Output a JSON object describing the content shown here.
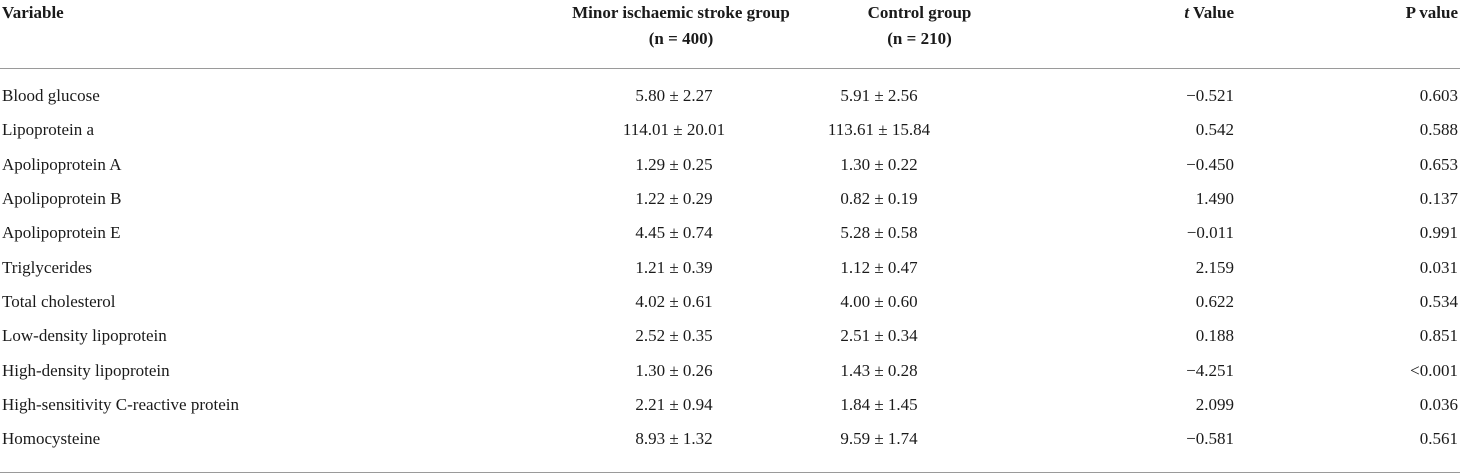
{
  "table": {
    "headers": {
      "variable": "Variable",
      "minor_line1": "Minor ischaemic stroke group",
      "minor_line2": "(n = 400)",
      "control_line1": "Control group",
      "control_line2": "(n = 210)",
      "t_italic": "t",
      "t_rest": " Value",
      "p_value": "P value"
    },
    "rows": [
      {
        "variable": "Blood glucose",
        "minor": "5.80 ± 2.27",
        "control": "5.91 ± 2.56",
        "t": "−0.521",
        "p": "0.603"
      },
      {
        "variable": "Lipoprotein a",
        "minor": "114.01 ± 20.01",
        "control": "113.61 ± 15.84",
        "t": "0.542",
        "p": "0.588"
      },
      {
        "variable": "Apolipoprotein A",
        "minor": "1.29 ± 0.25",
        "control": "1.30 ± 0.22",
        "t": "−0.450",
        "p": "0.653"
      },
      {
        "variable": "Apolipoprotein B",
        "minor": "1.22 ± 0.29",
        "control": "0.82 ± 0.19",
        "t": "1.490",
        "p": "0.137"
      },
      {
        "variable": "Apolipoprotein E",
        "minor": "4.45 ± 0.74",
        "control": "5.28 ± 0.58",
        "t": "−0.011",
        "p": "0.991"
      },
      {
        "variable": "Triglycerides",
        "minor": "1.21 ± 0.39",
        "control": "1.12 ± 0.47",
        "t": "2.159",
        "p": "0.031"
      },
      {
        "variable": "Total cholesterol",
        "minor": "4.02 ± 0.61",
        "control": "4.00 ± 0.60",
        "t": "0.622",
        "p": "0.534"
      },
      {
        "variable": "Low-density lipoprotein",
        "minor": "2.52 ± 0.35",
        "control": "2.51 ± 0.34",
        "t": "0.188",
        "p": "0.851"
      },
      {
        "variable": "High-density lipoprotein",
        "minor": "1.30 ± 0.26",
        "control": "1.43 ± 0.28",
        "t": "−4.251",
        "p": "<0.001"
      },
      {
        "variable": "High-sensitivity C-reactive protein",
        "minor": "2.21 ± 0.94",
        "control": "1.84 ± 1.45",
        "t": "2.099",
        "p": "0.036"
      },
      {
        "variable": "Homocysteine",
        "minor": "8.93 ± 1.32",
        "control": "9.59 ± 1.74",
        "t": "−0.581",
        "p": "0.561"
      }
    ]
  }
}
